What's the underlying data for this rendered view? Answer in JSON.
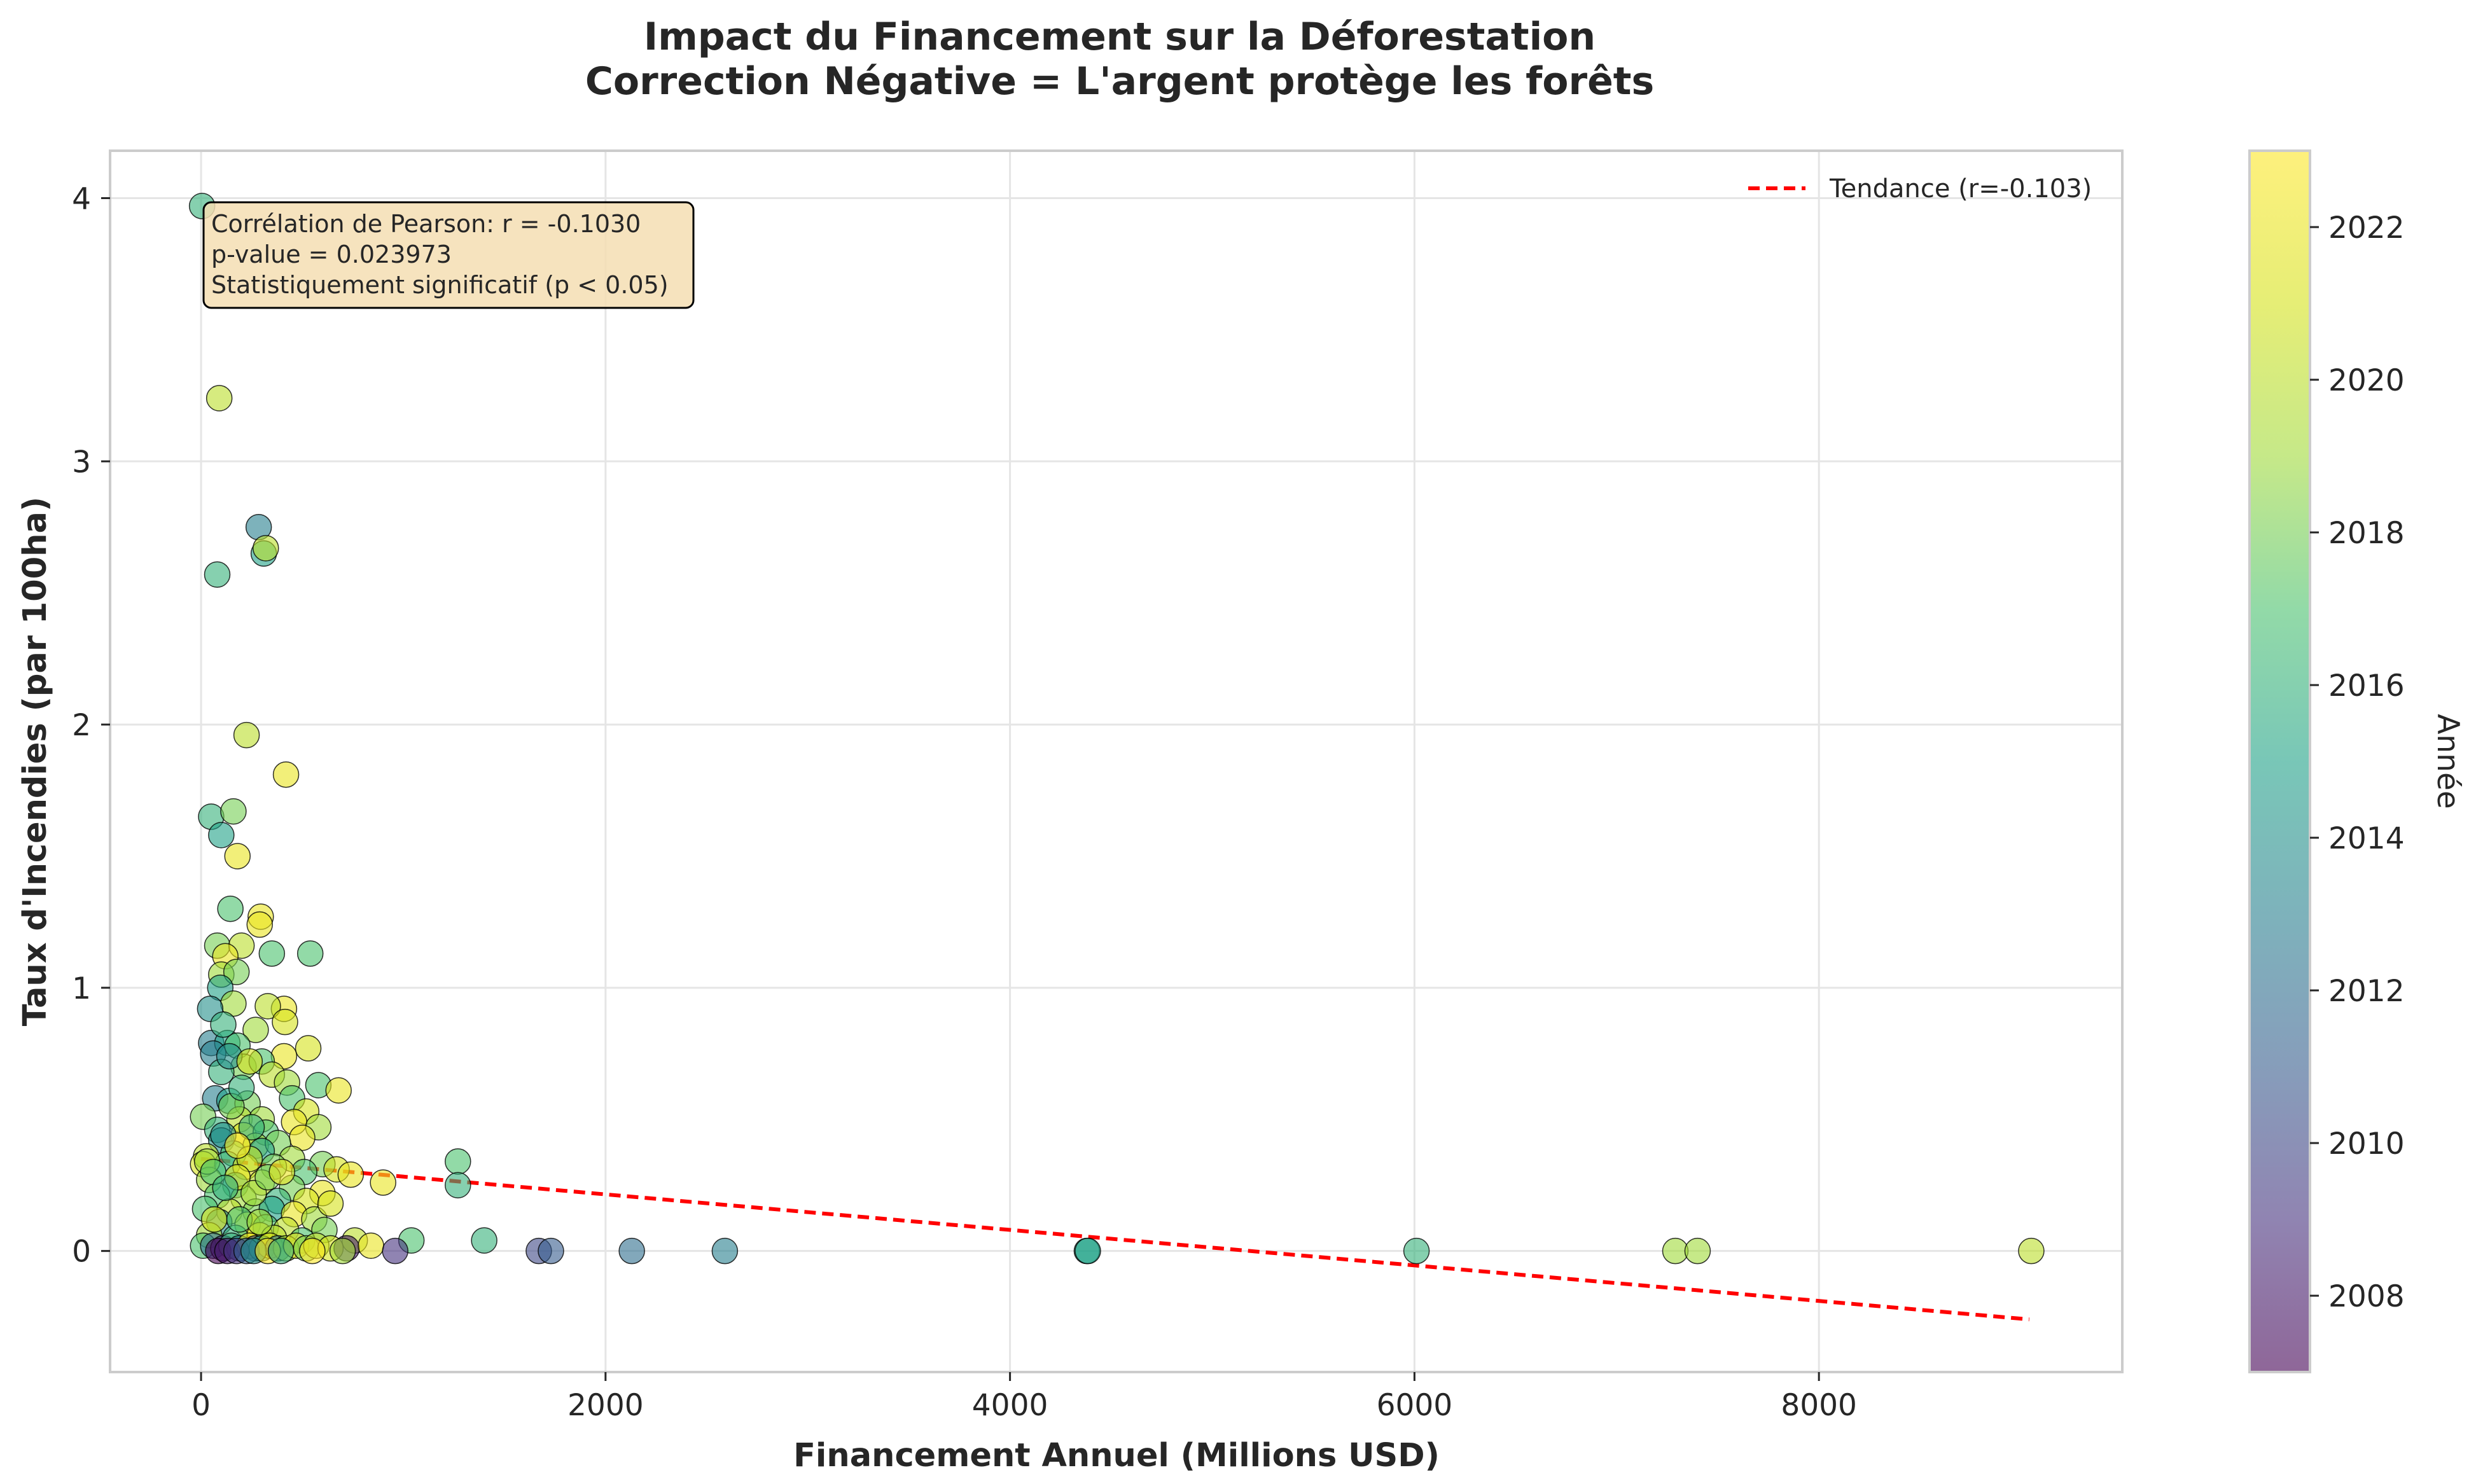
{
  "chart_data": {
    "type": "scatter",
    "title": "Impact du Financement sur la Déforestation",
    "subtitle": "Correction Négative = L'argent protège les forêts",
    "xlabel": "Financement Annuel (Millions USD)",
    "ylabel": "Taux d'Incendies (par 100ha)",
    "xlim": [
      -450,
      9500
    ],
    "ylim": [
      -0.46,
      4.18
    ],
    "xticks": [
      0,
      2000,
      4000,
      6000,
      8000
    ],
    "yticks": [
      0,
      1,
      2,
      3,
      4
    ],
    "grid": true,
    "colorbar": {
      "label": "Année",
      "range": [
        2007,
        2023
      ],
      "ticks": [
        2008,
        2010,
        2012,
        2014,
        2016,
        2018,
        2020,
        2022
      ],
      "colormap": "viridis"
    },
    "annotation": [
      "Corrélation de Pearson: r = -0.1030",
      "p-value = 0.023973",
      "Statistiquement significatif (p < 0.05)"
    ],
    "trend": {
      "label": "Tendance (r=-0.103)",
      "color": "#ff0000",
      "x": [
        0,
        9040
      ],
      "y": [
        0.35,
        -0.26
      ]
    },
    "legend_position": "top-right",
    "points": [
      {
        "x": 5,
        "y": 3.97,
        "year": 2016
      },
      {
        "x": 90,
        "y": 3.24,
        "year": 2020
      },
      {
        "x": 285,
        "y": 2.75,
        "year": 2013
      },
      {
        "x": 310,
        "y": 2.65,
        "year": 2015
      },
      {
        "x": 320,
        "y": 2.67,
        "year": 2020
      },
      {
        "x": 80,
        "y": 2.57,
        "year": 2016
      },
      {
        "x": 225,
        "y": 1.96,
        "year": 2020
      },
      {
        "x": 420,
        "y": 1.81,
        "year": 2022
      },
      {
        "x": 50,
        "y": 1.65,
        "year": 2016
      },
      {
        "x": 160,
        "y": 1.67,
        "year": 2018
      },
      {
        "x": 100,
        "y": 1.58,
        "year": 2015
      },
      {
        "x": 180,
        "y": 1.5,
        "year": 2022
      },
      {
        "x": 145,
        "y": 1.3,
        "year": 2017
      },
      {
        "x": 295,
        "y": 1.27,
        "year": 2022
      },
      {
        "x": 290,
        "y": 1.24,
        "year": 2022
      },
      {
        "x": 80,
        "y": 1.16,
        "year": 2018
      },
      {
        "x": 200,
        "y": 1.16,
        "year": 2020
      },
      {
        "x": 350,
        "y": 1.13,
        "year": 2017
      },
      {
        "x": 540,
        "y": 1.13,
        "year": 2017
      },
      {
        "x": 120,
        "y": 1.12,
        "year": 2022
      },
      {
        "x": 100,
        "y": 1.05,
        "year": 2019
      },
      {
        "x": 175,
        "y": 1.06,
        "year": 2018
      },
      {
        "x": 95,
        "y": 1.0,
        "year": 2015
      },
      {
        "x": 160,
        "y": 0.94,
        "year": 2019
      },
      {
        "x": 410,
        "y": 0.92,
        "year": 2022
      },
      {
        "x": 45,
        "y": 0.92,
        "year": 2014
      },
      {
        "x": 330,
        "y": 0.93,
        "year": 2020
      },
      {
        "x": 270,
        "y": 0.84,
        "year": 2019
      },
      {
        "x": 415,
        "y": 0.87,
        "year": 2021
      },
      {
        "x": 50,
        "y": 0.79,
        "year": 2013
      },
      {
        "x": 130,
        "y": 0.79,
        "year": 2015
      },
      {
        "x": 180,
        "y": 0.78,
        "year": 2017
      },
      {
        "x": 530,
        "y": 0.77,
        "year": 2021
      },
      {
        "x": 410,
        "y": 0.74,
        "year": 2022
      },
      {
        "x": 60,
        "y": 0.75,
        "year": 2013
      },
      {
        "x": 210,
        "y": 0.7,
        "year": 2018
      },
      {
        "x": 300,
        "y": 0.72,
        "year": 2017
      },
      {
        "x": 100,
        "y": 0.68,
        "year": 2016
      },
      {
        "x": 350,
        "y": 0.67,
        "year": 2020
      },
      {
        "x": 425,
        "y": 0.64,
        "year": 2019
      },
      {
        "x": 580,
        "y": 0.63,
        "year": 2017
      },
      {
        "x": 680,
        "y": 0.61,
        "year": 2022
      },
      {
        "x": 70,
        "y": 0.58,
        "year": 2013
      },
      {
        "x": 140,
        "y": 0.57,
        "year": 2015
      },
      {
        "x": 230,
        "y": 0.56,
        "year": 2018
      },
      {
        "x": 450,
        "y": 0.58,
        "year": 2017
      },
      {
        "x": 520,
        "y": 0.53,
        "year": 2021
      },
      {
        "x": 10,
        "y": 0.51,
        "year": 2018
      },
      {
        "x": 190,
        "y": 0.5,
        "year": 2020
      },
      {
        "x": 300,
        "y": 0.5,
        "year": 2019
      },
      {
        "x": 460,
        "y": 0.49,
        "year": 2022
      },
      {
        "x": 580,
        "y": 0.47,
        "year": 2019
      },
      {
        "x": 80,
        "y": 0.46,
        "year": 2016
      },
      {
        "x": 210,
        "y": 0.44,
        "year": 2021
      },
      {
        "x": 320,
        "y": 0.45,
        "year": 2017
      },
      {
        "x": 500,
        "y": 0.43,
        "year": 2022
      },
      {
        "x": 100,
        "y": 0.42,
        "year": 2014
      },
      {
        "x": 270,
        "y": 0.4,
        "year": 2019
      },
      {
        "x": 380,
        "y": 0.41,
        "year": 2018
      },
      {
        "x": 25,
        "y": 0.36,
        "year": 2020
      },
      {
        "x": 160,
        "y": 0.37,
        "year": 2017
      },
      {
        "x": 300,
        "y": 0.38,
        "year": 2015
      },
      {
        "x": 450,
        "y": 0.35,
        "year": 2019
      },
      {
        "x": 600,
        "y": 0.33,
        "year": 2018
      },
      {
        "x": 10,
        "y": 0.33,
        "year": 2021
      },
      {
        "x": 130,
        "y": 0.33,
        "year": 2016
      },
      {
        "x": 220,
        "y": 0.32,
        "year": 2022
      },
      {
        "x": 360,
        "y": 0.32,
        "year": 2018
      },
      {
        "x": 510,
        "y": 0.3,
        "year": 2017
      },
      {
        "x": 670,
        "y": 0.31,
        "year": 2021
      },
      {
        "x": 740,
        "y": 0.29,
        "year": 2022
      },
      {
        "x": 900,
        "y": 0.26,
        "year": 2022
      },
      {
        "x": 1270,
        "y": 0.34,
        "year": 2017
      },
      {
        "x": 1270,
        "y": 0.25,
        "year": 2016
      },
      {
        "x": 40,
        "y": 0.27,
        "year": 2019
      },
      {
        "x": 170,
        "y": 0.25,
        "year": 2015
      },
      {
        "x": 300,
        "y": 0.26,
        "year": 2020
      },
      {
        "x": 450,
        "y": 0.24,
        "year": 2018
      },
      {
        "x": 600,
        "y": 0.22,
        "year": 2022
      },
      {
        "x": 80,
        "y": 0.21,
        "year": 2017
      },
      {
        "x": 210,
        "y": 0.2,
        "year": 2019
      },
      {
        "x": 380,
        "y": 0.19,
        "year": 2016
      },
      {
        "x": 520,
        "y": 0.19,
        "year": 2021
      },
      {
        "x": 20,
        "y": 0.16,
        "year": 2017
      },
      {
        "x": 140,
        "y": 0.15,
        "year": 2020
      },
      {
        "x": 270,
        "y": 0.15,
        "year": 2018
      },
      {
        "x": 350,
        "y": 0.16,
        "year": 2015
      },
      {
        "x": 460,
        "y": 0.14,
        "year": 2022
      },
      {
        "x": 560,
        "y": 0.12,
        "year": 2019
      },
      {
        "x": 90,
        "y": 0.11,
        "year": 2014
      },
      {
        "x": 230,
        "y": 0.1,
        "year": 2021
      },
      {
        "x": 320,
        "y": 0.09,
        "year": 2017
      },
      {
        "x": 420,
        "y": 0.08,
        "year": 2020
      },
      {
        "x": 610,
        "y": 0.08,
        "year": 2018
      },
      {
        "x": 40,
        "y": 0.06,
        "year": 2019
      },
      {
        "x": 170,
        "y": 0.05,
        "year": 2016
      },
      {
        "x": 290,
        "y": 0.06,
        "year": 2022
      },
      {
        "x": 360,
        "y": 0.05,
        "year": 2020
      },
      {
        "x": 500,
        "y": 0.04,
        "year": 2017
      },
      {
        "x": 760,
        "y": 0.04,
        "year": 2020
      },
      {
        "x": 1040,
        "y": 0.04,
        "year": 2017
      },
      {
        "x": 1400,
        "y": 0.04,
        "year": 2016
      },
      {
        "x": 10,
        "y": 0.02,
        "year": 2017
      },
      {
        "x": 60,
        "y": 0.02,
        "year": 2012
      },
      {
        "x": 110,
        "y": 0.01,
        "year": 2009
      },
      {
        "x": 150,
        "y": 0.02,
        "year": 2016
      },
      {
        "x": 190,
        "y": 0.01,
        "year": 2013
      },
      {
        "x": 240,
        "y": 0.02,
        "year": 2022
      },
      {
        "x": 270,
        "y": 0.01,
        "year": 2010
      },
      {
        "x": 300,
        "y": 0.01,
        "year": 2015
      },
      {
        "x": 340,
        "y": 0.02,
        "year": 2021
      },
      {
        "x": 380,
        "y": 0.01,
        "year": 2012
      },
      {
        "x": 420,
        "y": 0.01,
        "year": 2019
      },
      {
        "x": 470,
        "y": 0.02,
        "year": 2022
      },
      {
        "x": 520,
        "y": 0.01,
        "year": 2018
      },
      {
        "x": 570,
        "y": 0.02,
        "year": 2020
      },
      {
        "x": 640,
        "y": 0.01,
        "year": 2021
      },
      {
        "x": 720,
        "y": 0.01,
        "year": 2008
      },
      {
        "x": 840,
        "y": 0.02,
        "year": 2022
      },
      {
        "x": 960,
        "y": 0.0,
        "year": 2009
      },
      {
        "x": 1670,
        "y": 0.0,
        "year": 2010
      },
      {
        "x": 1730,
        "y": 0.0,
        "year": 2011
      },
      {
        "x": 2130,
        "y": 0.0,
        "year": 2012
      },
      {
        "x": 2590,
        "y": 0.0,
        "year": 2013
      },
      {
        "x": 4380,
        "y": 0.0,
        "year": 2015
      },
      {
        "x": 4385,
        "y": 0.0,
        "year": 2015
      },
      {
        "x": 6010,
        "y": 0.0,
        "year": 2016
      },
      {
        "x": 7290,
        "y": 0.0,
        "year": 2019
      },
      {
        "x": 7400,
        "y": 0.0,
        "year": 2019
      },
      {
        "x": 9050,
        "y": 0.0,
        "year": 2020
      },
      {
        "x": 85,
        "y": 0.0,
        "year": 2007
      },
      {
        "x": 130,
        "y": 0.0,
        "year": 2008
      },
      {
        "x": 175,
        "y": 0.0,
        "year": 2009
      },
      {
        "x": 225,
        "y": 0.0,
        "year": 2011
      },
      {
        "x": 260,
        "y": 0.0,
        "year": 2014
      },
      {
        "x": 330,
        "y": 0.0,
        "year": 2023
      },
      {
        "x": 395,
        "y": 0.0,
        "year": 2016
      },
      {
        "x": 550,
        "y": 0.0,
        "year": 2023
      },
      {
        "x": 700,
        "y": 0.0,
        "year": 2019
      },
      {
        "x": 30,
        "y": 0.34,
        "year": 2019
      },
      {
        "x": 60,
        "y": 0.3,
        "year": 2017
      },
      {
        "x": 110,
        "y": 0.44,
        "year": 2014
      },
      {
        "x": 150,
        "y": 0.55,
        "year": 2018
      },
      {
        "x": 200,
        "y": 0.62,
        "year": 2016
      },
      {
        "x": 240,
        "y": 0.35,
        "year": 2020
      },
      {
        "x": 180,
        "y": 0.28,
        "year": 2021
      },
      {
        "x": 120,
        "y": 0.24,
        "year": 2016
      },
      {
        "x": 260,
        "y": 0.22,
        "year": 2019
      },
      {
        "x": 330,
        "y": 0.28,
        "year": 2018
      },
      {
        "x": 400,
        "y": 0.3,
        "year": 2022
      },
      {
        "x": 250,
        "y": 0.47,
        "year": 2016
      },
      {
        "x": 180,
        "y": 0.4,
        "year": 2023
      },
      {
        "x": 140,
        "y": 0.74,
        "year": 2014
      },
      {
        "x": 240,
        "y": 0.72,
        "year": 2021
      },
      {
        "x": 110,
        "y": 0.86,
        "year": 2016
      },
      {
        "x": 65,
        "y": 0.12,
        "year": 2021
      },
      {
        "x": 190,
        "y": 0.12,
        "year": 2017
      },
      {
        "x": 290,
        "y": 0.11,
        "year": 2019
      },
      {
        "x": 640,
        "y": 0.18,
        "year": 2021
      }
    ]
  }
}
